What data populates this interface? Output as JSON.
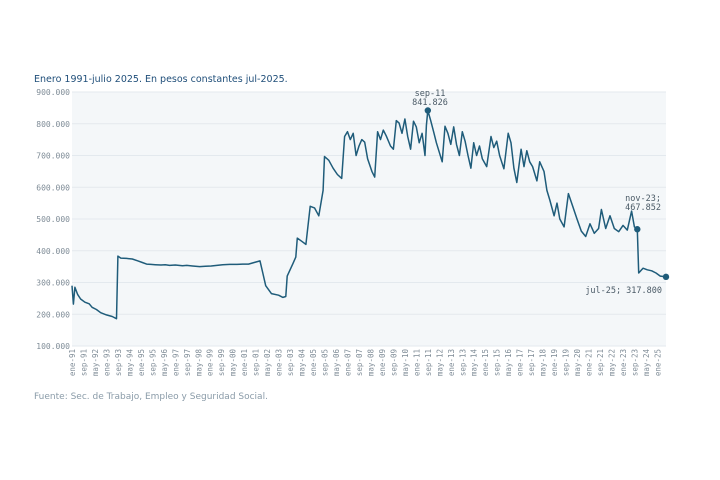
{
  "subtitle": "Enero 1991-julio 2025. En pesos constantes jul-2025.",
  "source": "Fuente: Sec. de Trabajo, Empleo y Seguridad Social.",
  "colors": {
    "line": "#1f5c7a",
    "plot_bg": "#f4f7f9",
    "grid": "#ffffff",
    "text": "#1f4e79"
  },
  "chart_data": {
    "type": "line",
    "title": "",
    "subtitle": "Enero 1991-julio 2025. En pesos constantes jul-2025.",
    "xlabel": "",
    "ylabel": "",
    "ylim": [
      100000,
      900000
    ],
    "grid": true,
    "yticks": [
      100000,
      200000,
      300000,
      400000,
      500000,
      600000,
      700000,
      800000,
      900000
    ],
    "ytick_labels": [
      "100.000",
      "200.000",
      "300.000",
      "400.000",
      "500.000",
      "600.000",
      "700.000",
      "800.000",
      "900.000"
    ],
    "xtick_labels": [
      "ene-91",
      "sep-91",
      "may-92",
      "ene-93",
      "sep-93",
      "may-94",
      "ene-95",
      "sep-95",
      "may-96",
      "ene-97",
      "sep-97",
      "may-98",
      "ene-99",
      "sep-99",
      "may-00",
      "ene-01",
      "sep-01",
      "may-02",
      "ene-03",
      "sep-03",
      "may-04",
      "ene-05",
      "sep-05",
      "may-06",
      "ene-07",
      "sep-07",
      "may-08",
      "ene-09",
      "sep-09",
      "may-10",
      "ene-11",
      "sep-11",
      "may-12",
      "ene-13",
      "sep-13",
      "may-14",
      "ene-15",
      "sep-15",
      "may-16",
      "ene-17",
      "sep-17",
      "may-18",
      "ene-19",
      "sep-19",
      "may-20",
      "ene-21",
      "sep-21",
      "may-22",
      "ene-23",
      "sep-23",
      "may-24",
      "ene-25"
    ],
    "series": [
      {
        "name": "",
        "points": [
          [
            "1991-01",
            290000
          ],
          [
            "1991-02",
            232000
          ],
          [
            "1991-03",
            285000
          ],
          [
            "1991-05",
            262000
          ],
          [
            "1991-07",
            248000
          ],
          [
            "1991-10",
            238000
          ],
          [
            "1992-01",
            233000
          ],
          [
            "1992-03",
            222000
          ],
          [
            "1992-06",
            215000
          ],
          [
            "1992-09",
            205000
          ],
          [
            "1993-01",
            198000
          ],
          [
            "1993-05",
            193000
          ],
          [
            "1993-08",
            186000
          ],
          [
            "1993-09",
            383000
          ],
          [
            "1993-11",
            377000
          ],
          [
            "1994-03",
            376000
          ],
          [
            "1994-07",
            374000
          ],
          [
            "1994-11",
            368000
          ],
          [
            "1995-02",
            363000
          ],
          [
            "1995-05",
            358000
          ],
          [
            "1995-08",
            357000
          ],
          [
            "1995-11",
            356000
          ],
          [
            "1996-03",
            355000
          ],
          [
            "1996-06",
            356000
          ],
          [
            "1996-09",
            354000
          ],
          [
            "1997-01",
            355000
          ],
          [
            "1997-06",
            353000
          ],
          [
            "1997-09",
            354000
          ],
          [
            "1998-01",
            352000
          ],
          [
            "1998-06",
            350000
          ],
          [
            "1998-10",
            351000
          ],
          [
            "1999-02",
            352000
          ],
          [
            "1999-06",
            354000
          ],
          [
            "1999-10",
            356000
          ],
          [
            "2000-03",
            357000
          ],
          [
            "2000-08",
            357000
          ],
          [
            "2000-12",
            358000
          ],
          [
            "2001-04",
            358000
          ],
          [
            "2001-08",
            363000
          ],
          [
            "2001-12",
            368000
          ],
          [
            "2002-02",
            330000
          ],
          [
            "2002-04",
            290000
          ],
          [
            "2002-08",
            265000
          ],
          [
            "2003-01",
            260000
          ],
          [
            "2003-04",
            253000
          ],
          [
            "2003-06",
            256000
          ],
          [
            "2003-07",
            320000
          ],
          [
            "2003-11",
            360000
          ],
          [
            "2004-01",
            380000
          ],
          [
            "2004-02",
            440000
          ],
          [
            "2004-05",
            430000
          ],
          [
            "2004-08",
            420000
          ],
          [
            "2004-11",
            540000
          ],
          [
            "2005-02",
            535000
          ],
          [
            "2005-05",
            510000
          ],
          [
            "2005-08",
            590000
          ],
          [
            "2005-09",
            697000
          ],
          [
            "2005-12",
            685000
          ],
          [
            "2006-03",
            660000
          ],
          [
            "2006-06",
            640000
          ],
          [
            "2006-09",
            628000
          ],
          [
            "2006-11",
            760000
          ],
          [
            "2007-01",
            775000
          ],
          [
            "2007-03",
            750000
          ],
          [
            "2007-05",
            770000
          ],
          [
            "2007-07",
            700000
          ],
          [
            "2007-09",
            730000
          ],
          [
            "2007-11",
            750000
          ],
          [
            "2008-01",
            742000
          ],
          [
            "2008-03",
            690000
          ],
          [
            "2008-06",
            650000
          ],
          [
            "2008-08",
            632000
          ],
          [
            "2008-10",
            775000
          ],
          [
            "2008-12",
            750000
          ],
          [
            "2009-02",
            780000
          ],
          [
            "2009-04",
            762000
          ],
          [
            "2009-07",
            730000
          ],
          [
            "2009-09",
            720000
          ],
          [
            "2009-11",
            810000
          ],
          [
            "2010-01",
            802000
          ],
          [
            "2010-03",
            770000
          ],
          [
            "2010-05",
            815000
          ],
          [
            "2010-07",
            760000
          ],
          [
            "2010-09",
            720000
          ],
          [
            "2010-11",
            808000
          ],
          [
            "2011-01",
            790000
          ],
          [
            "2011-03",
            740000
          ],
          [
            "2011-05",
            770000
          ],
          [
            "2011-07",
            700000
          ],
          [
            "2011-08",
            795000
          ],
          [
            "2011-09",
            841826
          ],
          [
            "2011-11",
            810000
          ],
          [
            "2012-01",
            775000
          ],
          [
            "2012-03",
            740000
          ],
          [
            "2012-05",
            710000
          ],
          [
            "2012-07",
            680000
          ],
          [
            "2012-09",
            792000
          ],
          [
            "2012-11",
            770000
          ],
          [
            "2013-01",
            735000
          ],
          [
            "2013-03",
            790000
          ],
          [
            "2013-05",
            735000
          ],
          [
            "2013-07",
            700000
          ],
          [
            "2013-09",
            775000
          ],
          [
            "2013-11",
            745000
          ],
          [
            "2014-01",
            700000
          ],
          [
            "2014-03",
            660000
          ],
          [
            "2014-05",
            740000
          ],
          [
            "2014-07",
            700000
          ],
          [
            "2014-09",
            730000
          ],
          [
            "2014-11",
            690000
          ],
          [
            "2015-02",
            665000
          ],
          [
            "2015-05",
            760000
          ],
          [
            "2015-07",
            725000
          ],
          [
            "2015-09",
            745000
          ],
          [
            "2015-11",
            700000
          ],
          [
            "2016-02",
            658000
          ],
          [
            "2016-05",
            770000
          ],
          [
            "2016-07",
            740000
          ],
          [
            "2016-09",
            660000
          ],
          [
            "2016-11",
            615000
          ],
          [
            "2017-02",
            720000
          ],
          [
            "2017-04",
            665000
          ],
          [
            "2017-06",
            715000
          ],
          [
            "2017-08",
            680000
          ],
          [
            "2017-10",
            665000
          ],
          [
            "2018-01",
            620000
          ],
          [
            "2018-03",
            680000
          ],
          [
            "2018-06",
            650000
          ],
          [
            "2018-08",
            590000
          ],
          [
            "2018-10",
            560000
          ],
          [
            "2019-01",
            510000
          ],
          [
            "2019-03",
            550000
          ],
          [
            "2019-05",
            500000
          ],
          [
            "2019-08",
            475000
          ],
          [
            "2019-11",
            580000
          ],
          [
            "2020-02",
            540000
          ],
          [
            "2020-05",
            500000
          ],
          [
            "2020-08",
            462000
          ],
          [
            "2020-11",
            445000
          ],
          [
            "2021-02",
            485000
          ],
          [
            "2021-05",
            455000
          ],
          [
            "2021-08",
            470000
          ],
          [
            "2021-10",
            530000
          ],
          [
            "2022-01",
            470000
          ],
          [
            "2022-04",
            510000
          ],
          [
            "2022-07",
            470000
          ],
          [
            "2022-10",
            460000
          ],
          [
            "2023-01",
            480000
          ],
          [
            "2023-04",
            465000
          ],
          [
            "2023-07",
            525000
          ],
          [
            "2023-09",
            475000
          ],
          [
            "2023-11",
            467852
          ],
          [
            "2023-12",
            330000
          ],
          [
            "2024-03",
            345000
          ],
          [
            "2024-06",
            340000
          ],
          [
            "2024-09",
            337000
          ],
          [
            "2024-12",
            330000
          ],
          [
            "2025-03",
            320000
          ],
          [
            "2025-07",
            317800
          ]
        ]
      }
    ],
    "markers": [
      {
        "date": "2011-09",
        "value": 841826,
        "label_date": "sep-11",
        "label_value": "841.826"
      },
      {
        "date": "2023-11",
        "value": 467852,
        "label": "nov-23;",
        "label_value": "467.852"
      },
      {
        "date": "2025-07",
        "value": 317800,
        "label": "jul-25; 317.800"
      }
    ]
  }
}
